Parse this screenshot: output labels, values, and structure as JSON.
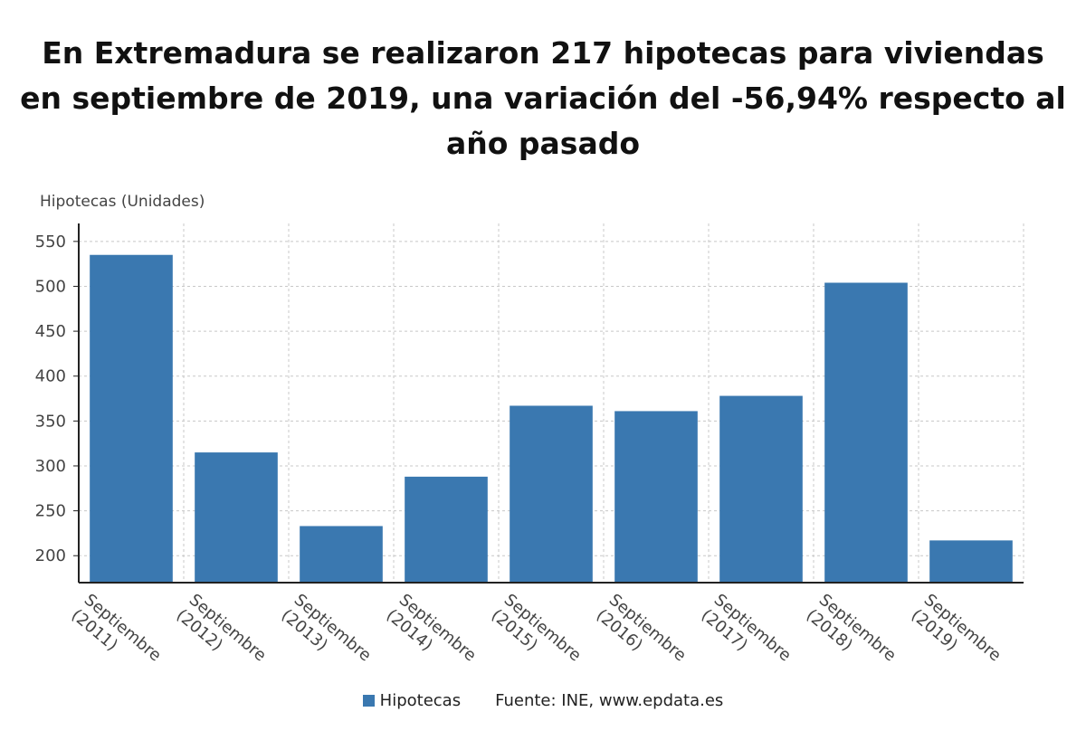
{
  "title": "En Extremadura se realizaron 217 hipotecas para viviendas en septiembre de 2019, una variación del -56,94% respecto al año pasado",
  "legend": {
    "series_name": "Hipotecas",
    "source": "Fuente: INE, www.epdata.es"
  },
  "colors": {
    "bar": "#3a78b0",
    "grid": "#c8c8c8",
    "axis": "#222222"
  },
  "chart_data": {
    "type": "bar",
    "ylabel": "Hipotecas (Unidades)",
    "xlabel": "",
    "categories": [
      [
        "Septiembre",
        "(2011)"
      ],
      [
        "Septiembre",
        "(2012)"
      ],
      [
        "Septiembre",
        "(2013)"
      ],
      [
        "Septiembre",
        "(2014)"
      ],
      [
        "Septiembre",
        "(2015)"
      ],
      [
        "Septiembre",
        "(2016)"
      ],
      [
        "Septiembre",
        "(2017)"
      ],
      [
        "Septiembre",
        "(2018)"
      ],
      [
        "Septiembre",
        "(2019)"
      ]
    ],
    "series": [
      {
        "name": "Hipotecas",
        "values": [
          535,
          315,
          233,
          288,
          367,
          361,
          378,
          504,
          217
        ]
      }
    ],
    "ylim": [
      170,
      570
    ],
    "yticks": [
      200,
      250,
      300,
      350,
      400,
      450,
      500,
      550
    ],
    "grid": true,
    "legend_position": "bottom"
  }
}
